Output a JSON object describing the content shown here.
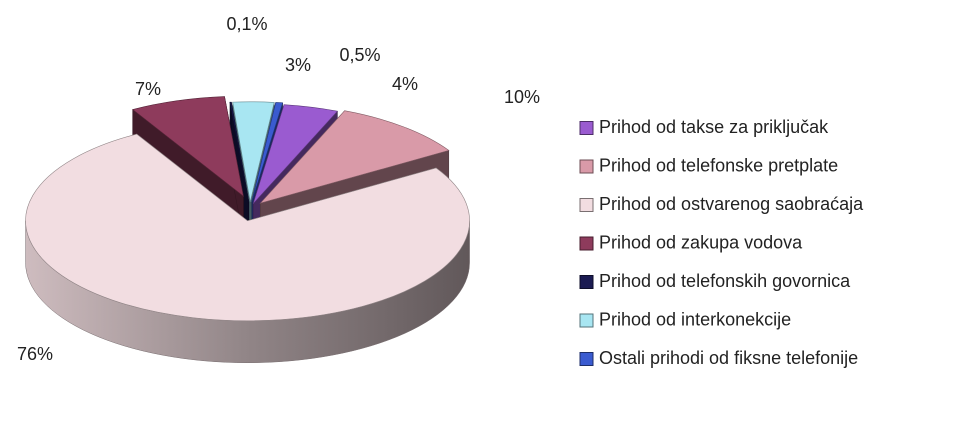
{
  "chart_data": {
    "type": "pie3d",
    "categories": [
      "Prihod od takse za priključak",
      "Prihod od telefonske pretplate",
      "Prihod od ostvarenog saobraćaja",
      "Prihod od zakupa vodova",
      "Prihod od telefonskih govornica",
      "Prihod od interkonekcije",
      "Ostali prihodi od fiksne telefonije"
    ],
    "values": [
      4,
      10,
      76,
      7,
      0.1,
      3,
      0.5
    ],
    "value_labels": [
      "4%",
      "10%",
      "76%",
      "7%",
      "0,1%",
      "3%",
      "0,5%"
    ],
    "colors": [
      "#9a5bd0",
      "#d99aa8",
      "#f2dde1",
      "#8e3b5c",
      "#1b1b52",
      "#a8e6f2",
      "#3a5bd0"
    ],
    "legend": "right"
  }
}
